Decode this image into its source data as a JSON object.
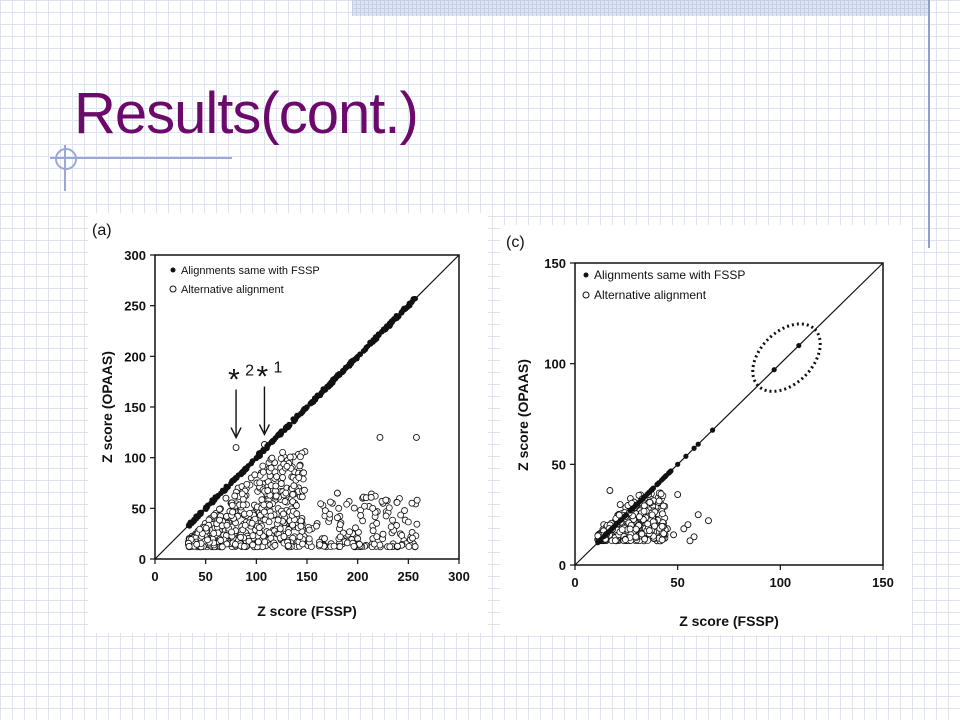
{
  "slide": {
    "title": "Results(cont.)"
  },
  "chart_data": [
    {
      "type": "scatter",
      "panel_label": "(a)",
      "xlabel": "Z score (FSSP)",
      "ylabel": "Z score (OPAAS)",
      "xlim": [
        0,
        300
      ],
      "ylim": [
        0,
        300
      ],
      "xticks": [
        "0",
        "50",
        "100",
        "150",
        "200",
        "250",
        "300"
      ],
      "yticks": [
        "0",
        "50",
        "100",
        "150",
        "200",
        "250",
        "300"
      ],
      "legend": {
        "placement": "top-left",
        "entries": [
          "Alignments same with FSSP",
          "Alternative alignment"
        ]
      },
      "diagonal": true,
      "annotations": [
        {
          "label": "*",
          "superscript": "2",
          "x": 80,
          "y": 110
        },
        {
          "label": "*",
          "superscript": "1",
          "x": 108,
          "y": 113
        }
      ],
      "series": [
        {
          "name": "Alignments same with FSSP",
          "marker": "filled",
          "x": [
            33,
            45,
            55,
            62,
            70,
            78,
            85,
            92,
            100,
            108,
            115,
            122,
            130,
            140,
            150,
            160,
            170,
            180,
            190,
            200,
            210,
            220,
            230,
            240,
            250,
            257
          ],
          "y": [
            33,
            45,
            55,
            62,
            70,
            78,
            85,
            92,
            100,
            108,
            115,
            122,
            130,
            140,
            150,
            160,
            170,
            180,
            190,
            200,
            210,
            220,
            230,
            240,
            250,
            257
          ]
        },
        {
          "name": "Alternative alignment",
          "marker": "hollow",
          "x": [
            80,
            108,
            35,
            40,
            48,
            55,
            60,
            65,
            70,
            75,
            82,
            88,
            95,
            100,
            105,
            112,
            118,
            124,
            130,
            138,
            145,
            155,
            165,
            175,
            185,
            195,
            205,
            215,
            225,
            235,
            255,
            258,
            200,
            222,
            180,
            170,
            160,
            150,
            120,
            90,
            60,
            45
          ],
          "y": [
            110,
            113,
            15,
            20,
            25,
            35,
            45,
            40,
            60,
            55,
            70,
            65,
            80,
            50,
            85,
            75,
            95,
            90,
            70,
            55,
            40,
            30,
            20,
            55,
            15,
            25,
            60,
            20,
            55,
            15,
            15,
            120,
            20,
            120,
            65,
            45,
            35,
            20,
            30,
            25,
            18,
            12
          ]
        }
      ]
    },
    {
      "type": "scatter",
      "panel_label": "(c)",
      "xlabel": "Z score (FSSP)",
      "ylabel": "Z score (OPAAS)",
      "xlim": [
        0,
        150
      ],
      "ylim": [
        0,
        150
      ],
      "xticks": [
        "0",
        "50",
        "100",
        "150"
      ],
      "yticks": [
        "0",
        "50",
        "100",
        "150"
      ],
      "legend": {
        "placement": "top-left",
        "entries": [
          "Alignments same with FSSP",
          "Alternative alignment"
        ]
      },
      "diagonal": true,
      "highlight": {
        "shape": "dotted-ellipse",
        "around_x": [
          97,
          109
        ]
      },
      "series": [
        {
          "name": "Alignments same with FSSP",
          "marker": "filled",
          "x": [
            12,
            15,
            18,
            20,
            22,
            25,
            28,
            30,
            33,
            35,
            38,
            40,
            43,
            46,
            50,
            54,
            58,
            60,
            67,
            97,
            109
          ],
          "y": [
            12,
            15,
            18,
            20,
            22,
            25,
            28,
            30,
            33,
            35,
            38,
            40,
            43,
            46,
            50,
            54,
            58,
            60,
            67,
            97,
            109
          ]
        },
        {
          "name": "Alternative alignment",
          "marker": "hollow",
          "x": [
            17,
            22,
            27,
            30,
            35,
            38,
            42,
            45,
            50,
            55,
            58,
            60,
            65,
            12,
            14,
            20,
            25,
            32,
            40,
            48,
            53,
            56
          ],
          "y": [
            37,
            30,
            33,
            28,
            25,
            22,
            30,
            18,
            35,
            20,
            14,
            25,
            22,
            14,
            20,
            12,
            16,
            15,
            12,
            15,
            18,
            12
          ]
        }
      ]
    }
  ]
}
